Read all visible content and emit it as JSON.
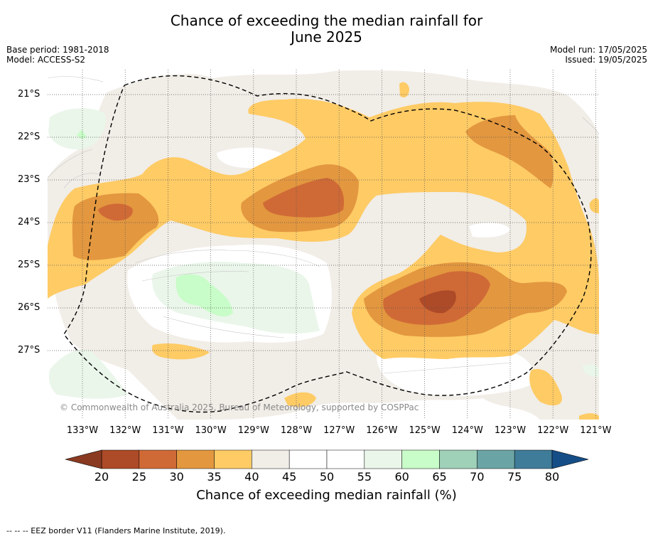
{
  "title_line1": "Chance of exceeding the median rainfall for",
  "title_line2": "June 2025",
  "meta_left": [
    "Base period: 1981-2018",
    "Model: ACCESS-S2"
  ],
  "meta_right": [
    "Model run: 17/05/2025",
    "Issued: 19/05/2025"
  ],
  "copyright": "© Commonwealth of Australia 2025, Bureau of Meteorology, supported by COSPPac",
  "footnote": "--  --  -- EEZ border V11 (Flanders Marine Institute, 2019).",
  "lat_labels": [
    "21°S",
    "22°S",
    "23°S",
    "24°S",
    "25°S",
    "26°S",
    "27°S"
  ],
  "lon_labels": [
    "133°W",
    "132°W",
    "131°W",
    "130°W",
    "129°W",
    "128°W",
    "127°W",
    "126°W",
    "125°W",
    "124°W",
    "123°W",
    "122°W",
    "121°W"
  ],
  "colorbar": {
    "title": "Chance of exceeding median rainfall (%)",
    "ticks": [
      "20",
      "25",
      "30",
      "35",
      "40",
      "45",
      "50",
      "55",
      "60",
      "65",
      "70",
      "75",
      "80"
    ],
    "colors": [
      "#ad4a28",
      "#cf6a36",
      "#e3973f",
      "#fecb65",
      "#f1ede7",
      "#ffffff",
      "#ffffff",
      "#eaf6ea",
      "#c8fcc8",
      "#9fd0b8",
      "#6ba4a4",
      "#3f7c99"
    ],
    "under_color": "#8a3a21",
    "over_color": "#154e87"
  },
  "legend_colors": {
    "land_bg": "#f1ede7",
    "light_orange": "#fecb65",
    "mid_orange": "#e3973f",
    "dark_orange": "#cf6a36",
    "darkest": "#ad4a28",
    "light_green": "#eaf6ea",
    "green": "#c8fcc8"
  }
}
